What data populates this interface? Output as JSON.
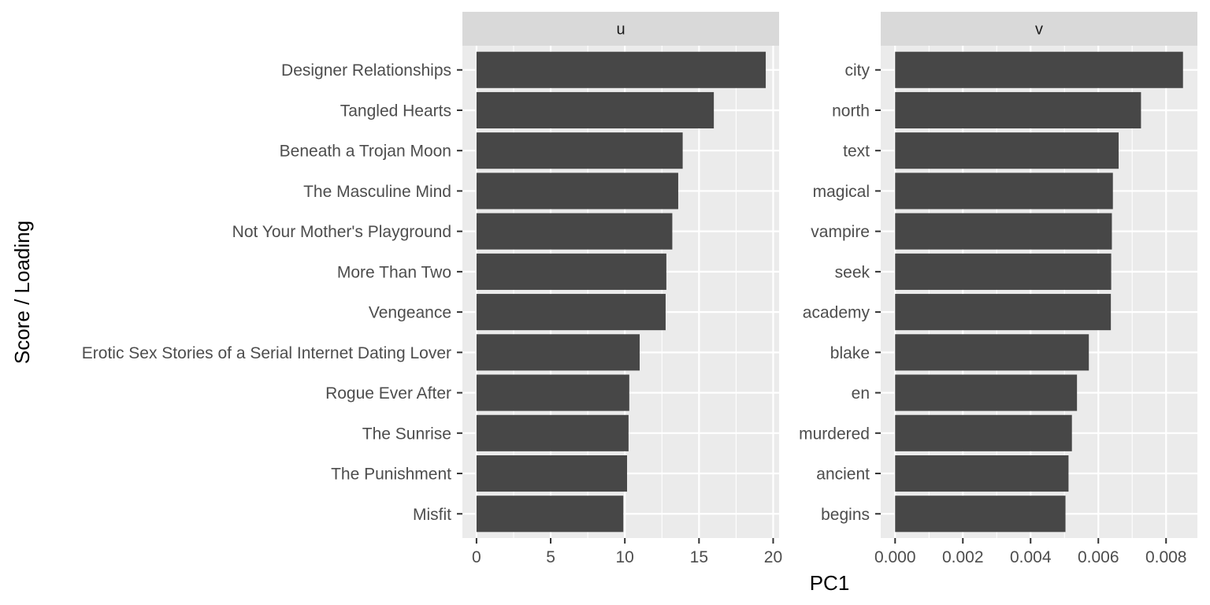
{
  "chart_data": {
    "type": "bar",
    "orientation": "horizontal",
    "xlabel": "PC1",
    "ylabel": "Score / Loading",
    "grid": true,
    "facets": [
      {
        "strip_label": "u",
        "categories": [
          "Designer Relationships",
          "Tangled Hearts",
          "Beneath a Trojan Moon",
          "The Masculine Mind",
          "Not Your Mother's Playground",
          "More Than Two",
          "Vengeance",
          "Erotic Sex Stories of a Serial Internet Dating Lover",
          "Rogue Ever After",
          "The Sunrise",
          "The Punishment",
          "Misfit"
        ],
        "values": [
          19.5,
          16.0,
          13.9,
          13.6,
          13.2,
          12.8,
          12.75,
          11.0,
          10.3,
          10.25,
          10.15,
          9.9
        ],
        "xlim": [
          -0.95,
          20.4
        ],
        "xticks": [
          0,
          5,
          10,
          15,
          20
        ],
        "xtick_labels": [
          "0",
          "5",
          "10",
          "15",
          "20"
        ]
      },
      {
        "strip_label": "v",
        "categories": [
          "city",
          "north",
          "text",
          "magical",
          "vampire",
          "seek",
          "academy",
          "blake",
          "en",
          "murdered",
          "ancient",
          "begins"
        ],
        "values": [
          0.0085,
          0.00726,
          0.0066,
          0.00643,
          0.0064,
          0.00638,
          0.00637,
          0.00572,
          0.00537,
          0.00522,
          0.00512,
          0.00503
        ],
        "xlim": [
          -0.000425,
          0.008925
        ],
        "xticks": [
          0,
          0.002,
          0.004,
          0.006,
          0.008
        ],
        "xtick_labels": [
          "0.000",
          "0.002",
          "0.004",
          "0.006",
          "0.008"
        ]
      }
    ],
    "colors": {
      "bar": "#474747",
      "panel_background": "#ebebeb",
      "strip_background": "#d9d9d9",
      "grid": "#ffffff"
    }
  }
}
